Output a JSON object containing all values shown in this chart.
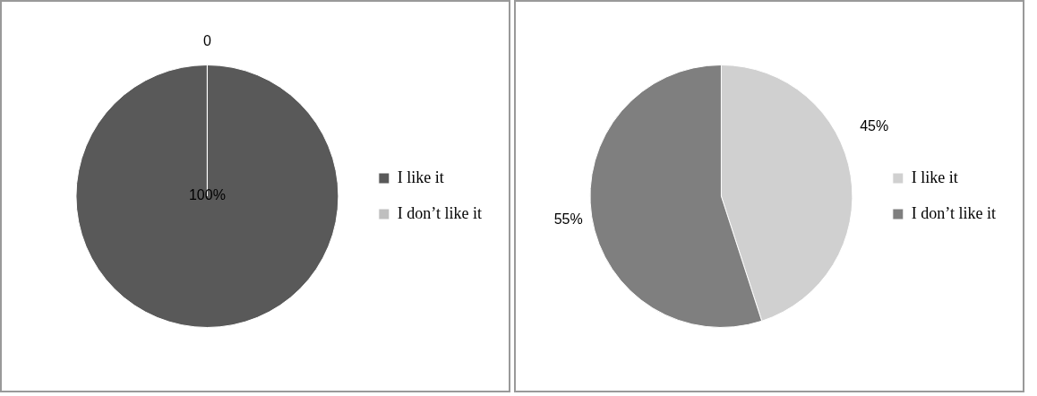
{
  "chart_data": [
    {
      "type": "pie",
      "categories": [
        "I like it",
        "I don’t like it"
      ],
      "values": [
        100,
        0
      ],
      "colors": [
        "#595959",
        "#bfbfbf"
      ],
      "value_labels": [
        "100%",
        "0"
      ],
      "legend": "right"
    },
    {
      "type": "pie",
      "categories": [
        "I like it",
        "I don’t like it"
      ],
      "values": [
        45,
        55
      ],
      "colors": [
        "#d0d0d0",
        "#7f7f7f"
      ],
      "value_labels": [
        "45%",
        "55%"
      ],
      "legend": "right"
    }
  ]
}
